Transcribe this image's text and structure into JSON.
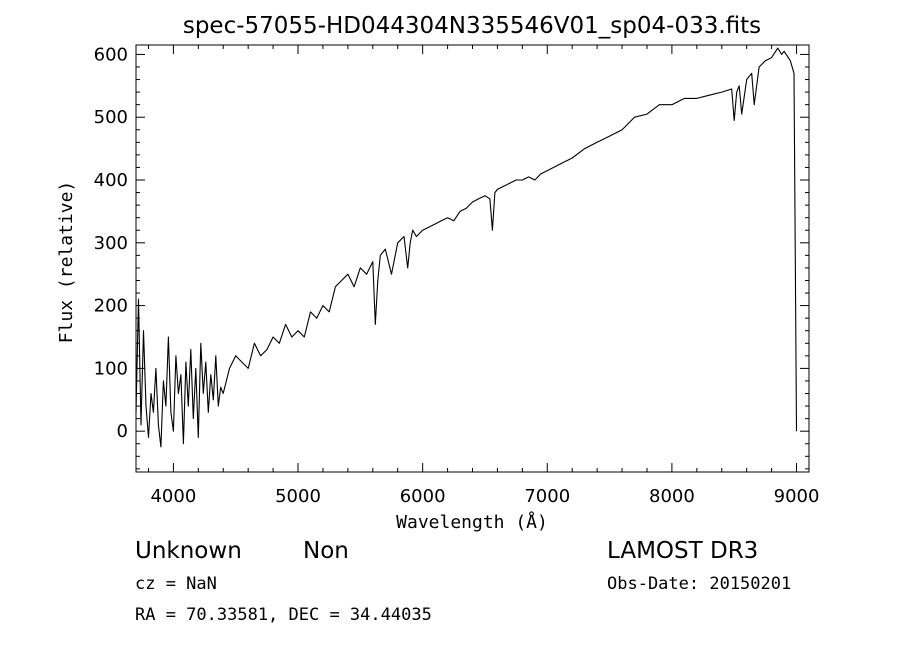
{
  "chart_data": {
    "type": "line",
    "title": "spec-57055-HD044304N335546V01_sp04-033.fits",
    "xlabel": "Wavelength (Å)",
    "ylabel": "Flux (relative)",
    "xlim": [
      3700,
      9100
    ],
    "ylim": [
      -65,
      615
    ],
    "x_ticks": [
      4000,
      5000,
      6000,
      7000,
      8000,
      9000
    ],
    "y_ticks": [
      0,
      100,
      200,
      300,
      400,
      500,
      600
    ],
    "grid": false,
    "series": [
      {
        "x": [
          3700,
          3720,
          3740,
          3760,
          3780,
          3800,
          3820,
          3840,
          3860,
          3880,
          3900,
          3920,
          3940,
          3960,
          3980,
          4000,
          4020,
          4040,
          4060,
          4080,
          4100,
          4120,
          4140,
          4160,
          4180,
          4200,
          4220,
          4240,
          4260,
          4280,
          4300,
          4320,
          4340,
          4360,
          4380,
          4400,
          4450,
          4500,
          4550,
          4600,
          4650,
          4700,
          4750,
          4800,
          4850,
          4900,
          4950,
          5000,
          5050,
          5100,
          5150,
          5200,
          5250,
          5300,
          5350,
          5400,
          5450,
          5500,
          5550,
          5600,
          5620,
          5640,
          5660,
          5700,
          5750,
          5800,
          5850,
          5880,
          5900,
          5920,
          5950,
          6000,
          6050,
          6100,
          6150,
          6200,
          6250,
          6300,
          6350,
          6400,
          6450,
          6500,
          6540,
          6560,
          6580,
          6600,
          6650,
          6700,
          6750,
          6800,
          6850,
          6900,
          6950,
          7000,
          7100,
          7200,
          7300,
          7400,
          7500,
          7600,
          7700,
          7800,
          7900,
          8000,
          8100,
          8200,
          8300,
          8400,
          8480,
          8500,
          8520,
          8540,
          8560,
          8600,
          8640,
          8660,
          8700,
          8750,
          8800,
          8850,
          8880,
          8900,
          8950,
          8980,
          9000
        ],
        "values": [
          30,
          210,
          10,
          160,
          40,
          -10,
          60,
          30,
          100,
          10,
          -25,
          80,
          40,
          150,
          30,
          0,
          120,
          60,
          90,
          -20,
          110,
          40,
          130,
          20,
          100,
          -10,
          140,
          60,
          110,
          30,
          90,
          50,
          120,
          40,
          70,
          60,
          100,
          120,
          110,
          100,
          140,
          120,
          130,
          150,
          140,
          170,
          150,
          160,
          150,
          190,
          180,
          200,
          190,
          230,
          240,
          250,
          230,
          260,
          250,
          270,
          170,
          240,
          280,
          290,
          250,
          300,
          310,
          260,
          300,
          320,
          310,
          320,
          325,
          330,
          335,
          340,
          335,
          350,
          355,
          365,
          370,
          375,
          370,
          320,
          380,
          385,
          390,
          395,
          400,
          400,
          405,
          400,
          410,
          415,
          425,
          435,
          450,
          460,
          470,
          480,
          500,
          505,
          520,
          520,
          530,
          530,
          535,
          540,
          545,
          495,
          540,
          550,
          505,
          560,
          570,
          520,
          580,
          590,
          595,
          610,
          600,
          605,
          590,
          570,
          0
        ]
      }
    ]
  },
  "footer": {
    "object_class": "Unknown",
    "subclass": "Non",
    "survey": "LAMOST DR3",
    "cz": "cz = NaN",
    "obs_date": "Obs-Date: 20150201",
    "coords": "RA =  70.33581, DEC =  34.44035"
  }
}
